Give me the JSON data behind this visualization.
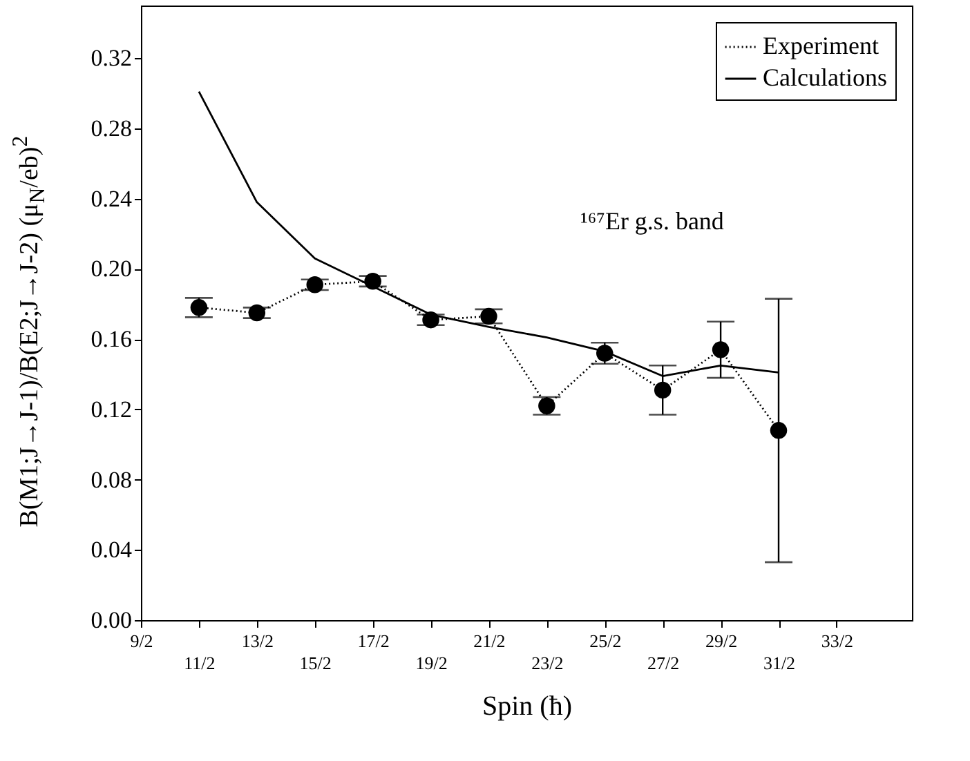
{
  "chart_data": {
    "type": "line",
    "xlabel": "Spin (ħ)",
    "ylabel": "B(M1;J→J-1)/B(E2;J→J-2) (μ$_{N}$/eb)$^{2}$",
    "annotations": [
      "¹⁶⁷Er  g.s. band"
    ],
    "categories": [
      "9/2",
      "11/2",
      "13/2",
      "15/2",
      "17/2",
      "19/2",
      "21/2",
      "23/2",
      "25/2",
      "27/2",
      "29/2",
      "31/2",
      "33/2"
    ],
    "series": [
      {
        "name": "Experiment",
        "color": "#000000",
        "marker": "circle",
        "line_style": "dotted",
        "values": [
          null,
          0.178,
          0.175,
          0.191,
          0.193,
          0.171,
          0.173,
          0.122,
          0.152,
          0.131,
          0.154,
          0.108,
          null
        ],
        "errors": [
          null,
          0.0055,
          0.003,
          0.003,
          0.003,
          0.003,
          0.004,
          0.005,
          0.006,
          0.014,
          0.016,
          0.075,
          null
        ]
      },
      {
        "name": "Calculations",
        "color": "#000000",
        "marker": "none",
        "line_style": "solid",
        "values": [
          null,
          0.301,
          0.238,
          0.206,
          0.19,
          0.174,
          0.167,
          0.161,
          0.153,
          0.139,
          0.145,
          0.141,
          null
        ]
      }
    ],
    "ylim": [
      0,
      0.35
    ],
    "yticks": [
      {
        "value": 0,
        "label": "0.00"
      },
      {
        "value": 0.04,
        "label": "0.04"
      },
      {
        "value": 0.08,
        "label": "0.08"
      },
      {
        "value": 0.12,
        "label": "0.12"
      },
      {
        "value": 0.16,
        "label": "0.16"
      },
      {
        "value": 0.2,
        "label": "0.20"
      },
      {
        "value": 0.24,
        "label": "0.24"
      },
      {
        "value": 0.28,
        "label": "0.28"
      },
      {
        "value": 0.32,
        "label": "0.32"
      }
    ],
    "grid": false,
    "legend": "top right"
  }
}
